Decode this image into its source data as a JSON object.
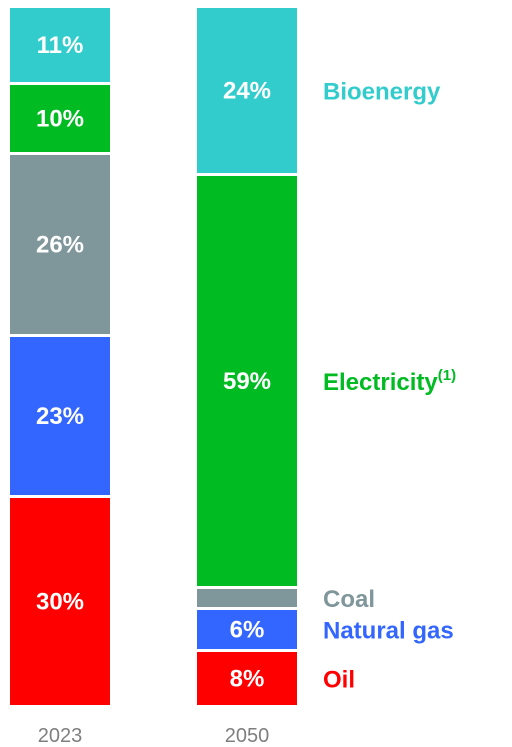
{
  "chart_data": {
    "type": "bar",
    "stacked": true,
    "orientation": "vertical",
    "categories": [
      "2023",
      "2050"
    ],
    "series": [
      {
        "name": "Oil",
        "color": "#ff0000",
        "values": [
          30,
          8
        ],
        "labels": [
          "30%",
          "8%"
        ]
      },
      {
        "name": "Natural gas",
        "color": "#3366ff",
        "values": [
          23,
          6
        ],
        "labels": [
          "23%",
          "6%"
        ]
      },
      {
        "name": "Coal",
        "color": "#7f969a",
        "values": [
          26,
          3
        ],
        "labels": [
          "26%",
          ""
        ]
      },
      {
        "name": "Electricity",
        "superscript": "(1)",
        "color": "#00bb22",
        "values": [
          10,
          59
        ],
        "labels": [
          "10%",
          "59%"
        ]
      },
      {
        "name": "Bioenergy",
        "color": "#33cccc",
        "values": [
          11,
          24
        ],
        "labels": [
          "11%",
          "24%"
        ]
      }
    ],
    "legend_position": "right",
    "grid": false
  }
}
